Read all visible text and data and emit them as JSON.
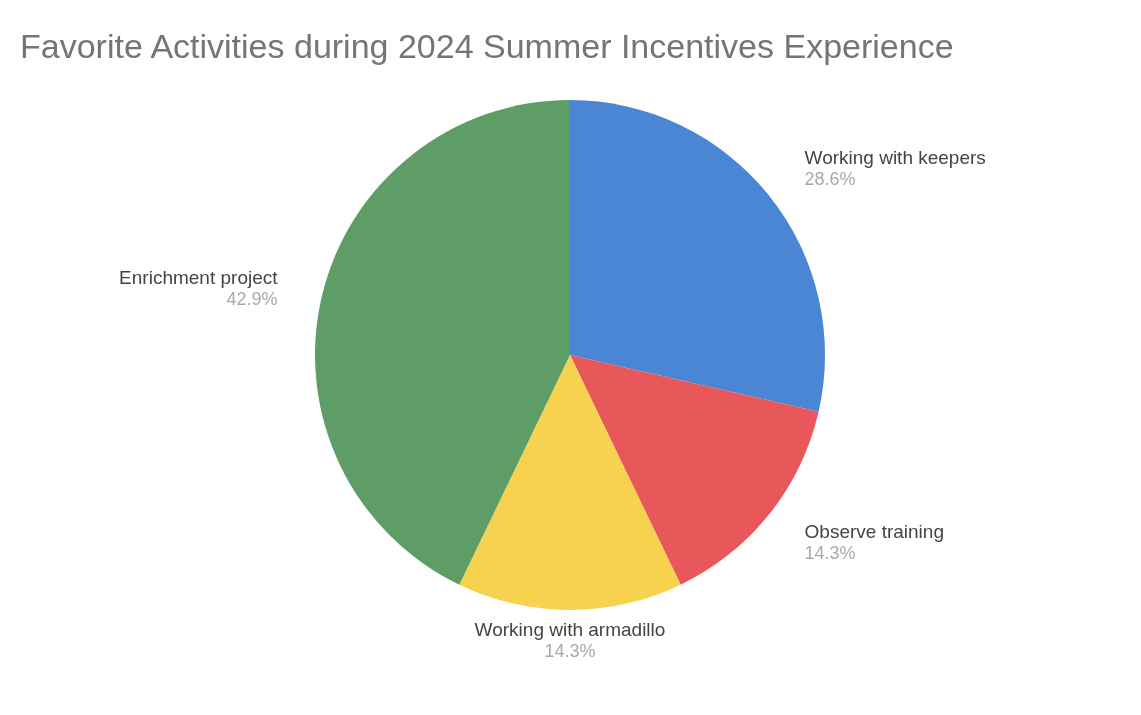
{
  "chart_data": {
    "type": "pie",
    "title": "Favorite Activities during 2024 Summer Incentives Experience",
    "categories": [
      "Working with keepers",
      "Observe training",
      "Working with armadillo",
      "Enrichment project"
    ],
    "values": [
      28.6,
      14.3,
      14.3,
      42.9
    ],
    "colors": [
      "#4a86d4",
      "#e8585a",
      "#f7d24e",
      "#5e9e66"
    ],
    "value_labels": [
      "28.6%",
      "14.3%",
      "14.3%",
      "42.9%"
    ],
    "legend": false
  }
}
